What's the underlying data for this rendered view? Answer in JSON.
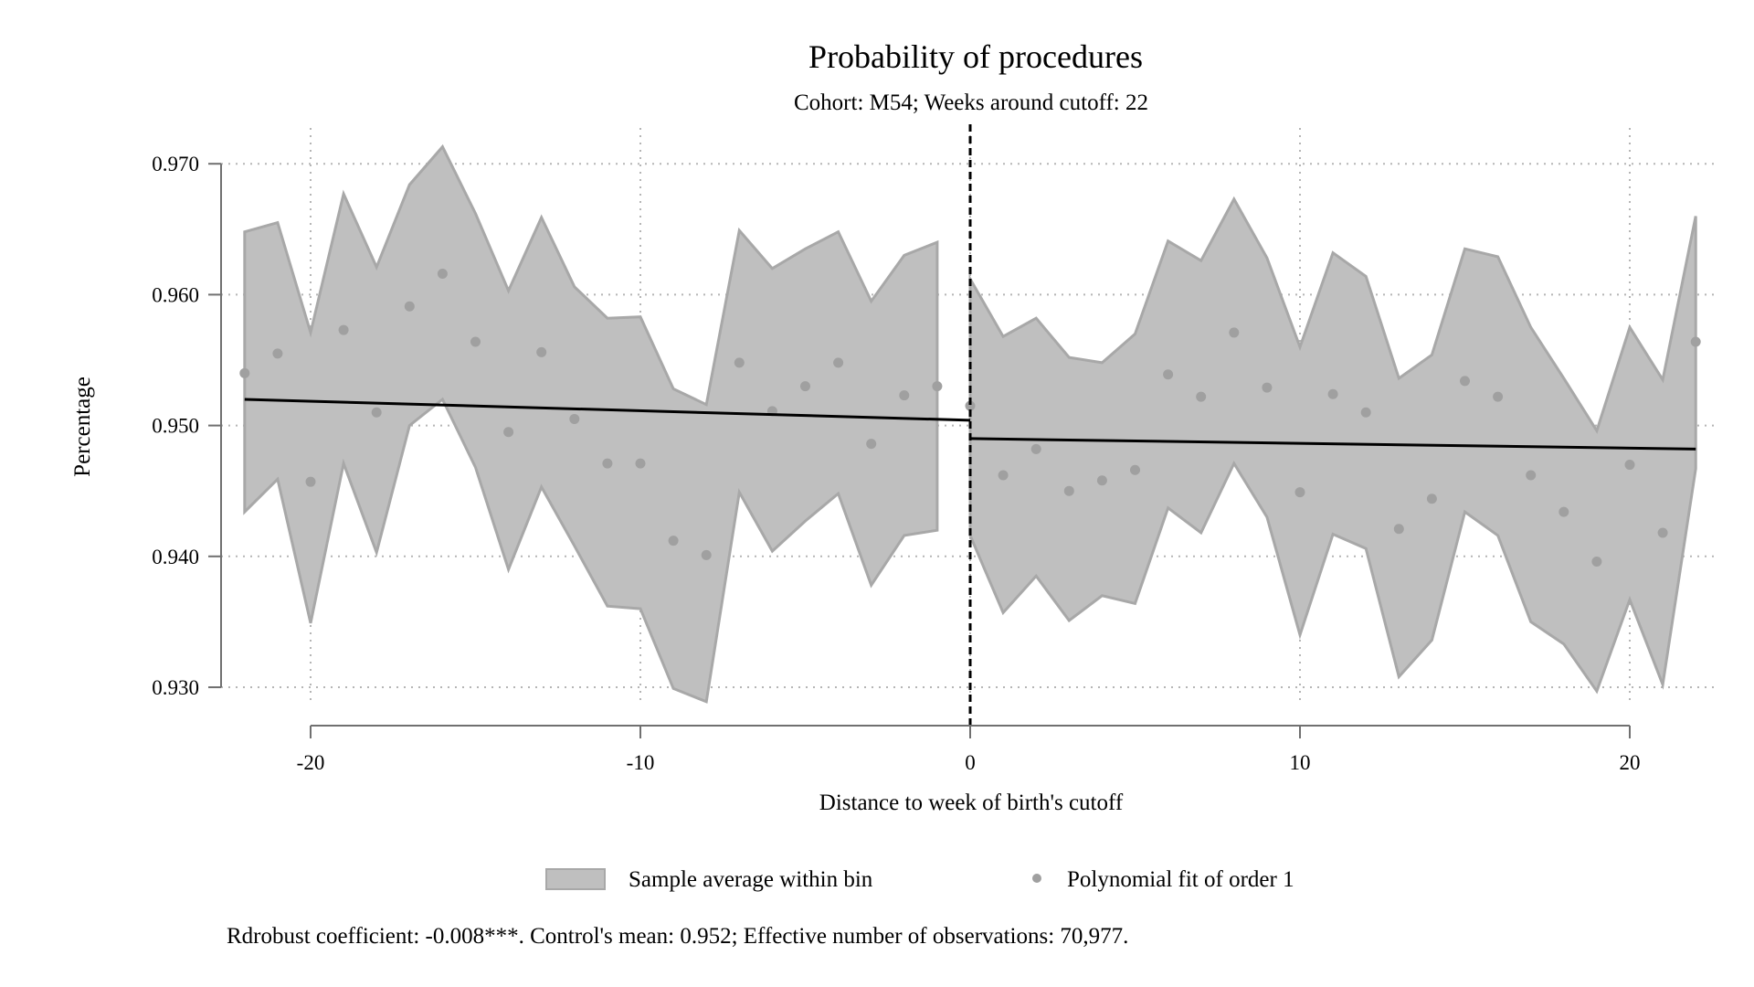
{
  "chart_data": {
    "type": "scatter",
    "title": "Probability of procedures",
    "subtitle": "Cohort: M54; Weeks around cutoff: 22",
    "xlabel": "Distance to week of birth's cutoff",
    "ylabel": "Percentage",
    "xlim": [
      -23,
      23
    ],
    "ylim": [
      0.927,
      0.972
    ],
    "x_ticks": [
      -20,
      -10,
      0,
      10,
      20
    ],
    "x_tick_labels": [
      "-20",
      "-10",
      "0",
      "10",
      "20"
    ],
    "y_ticks": [
      0.93,
      0.94,
      0.95,
      0.96,
      0.97
    ],
    "y_tick_labels": [
      "0.930",
      "0.940",
      "0.950",
      "0.960",
      "0.970"
    ],
    "grid": true,
    "cutoff": 0,
    "legend_position": "bottom",
    "legend": [
      {
        "label": "Sample average within bin",
        "kind": "area",
        "color": "#bfbfbf"
      },
      {
        "label": "Polynomial fit of order 1",
        "kind": "point",
        "color": "#a0a0a0"
      }
    ],
    "colors": {
      "band_fill": "#bfbfbf",
      "band_edge": "#a8a8a8",
      "points": "#a0a0a0",
      "fit_line": "#000000",
      "cutoff_line": "#000000",
      "grid": "#b5b5b5",
      "axis": "#707070"
    },
    "band_left": {
      "x": [
        -22,
        -21,
        -20,
        -19,
        -18,
        -17,
        -16,
        -15,
        -14,
        -13,
        -12,
        -11,
        -10,
        -9,
        -8,
        -7,
        -6,
        -5,
        -4,
        -3,
        -2,
        -1
      ],
      "upper": [
        0.9648,
        0.9655,
        0.9571,
        0.9677,
        0.9621,
        0.9684,
        0.9713,
        0.9662,
        0.9603,
        0.9659,
        0.9606,
        0.9582,
        0.9583,
        0.9528,
        0.9516,
        0.9649,
        0.962,
        0.9635,
        0.9648,
        0.9595,
        0.963,
        0.964
      ],
      "lower": [
        0.9434,
        0.9459,
        0.9349,
        0.9471,
        0.9403,
        0.95,
        0.952,
        0.9468,
        0.939,
        0.9453,
        0.9408,
        0.9362,
        0.936,
        0.9299,
        0.9289,
        0.9449,
        0.9404,
        0.9427,
        0.9448,
        0.9378,
        0.9416,
        0.942
      ]
    },
    "band_right": {
      "x": [
        0,
        1,
        2,
        3,
        4,
        5,
        6,
        7,
        8,
        9,
        10,
        11,
        12,
        13,
        14,
        15,
        16,
        17,
        18,
        19,
        20,
        21,
        22
      ],
      "upper": [
        0.9612,
        0.9568,
        0.9582,
        0.9552,
        0.9548,
        0.957,
        0.9641,
        0.9626,
        0.9673,
        0.9628,
        0.956,
        0.9632,
        0.9614,
        0.9536,
        0.9554,
        0.9635,
        0.9629,
        0.9575,
        0.9536,
        0.9496,
        0.9575,
        0.9535,
        0.966
      ],
      "lower": [
        0.9416,
        0.9357,
        0.9385,
        0.9351,
        0.937,
        0.9364,
        0.9437,
        0.9418,
        0.9471,
        0.943,
        0.934,
        0.9417,
        0.9406,
        0.9308,
        0.9336,
        0.9434,
        0.9416,
        0.935,
        0.9333,
        0.9297,
        0.9367,
        0.9302,
        0.9467
      ]
    },
    "points": {
      "x": [
        -22,
        -21,
        -20,
        -19,
        -18,
        -17,
        -16,
        -15,
        -14,
        -13,
        -12,
        -11,
        -10,
        -9,
        -8,
        -7,
        -6,
        -5,
        -4,
        -3,
        -2,
        -1,
        0,
        1,
        2,
        3,
        4,
        5,
        6,
        7,
        8,
        9,
        10,
        11,
        12,
        13,
        14,
        15,
        16,
        17,
        18,
        19,
        20,
        21,
        22
      ],
      "y": [
        0.954,
        0.9555,
        0.9457,
        0.9573,
        0.951,
        0.9591,
        0.9616,
        0.9564,
        0.9495,
        0.9556,
        0.9505,
        0.9471,
        0.9471,
        0.9412,
        0.9401,
        0.9548,
        0.9511,
        0.953,
        0.9548,
        0.9486,
        0.9523,
        0.953,
        0.9515,
        0.9462,
        0.9482,
        0.945,
        0.9458,
        0.9466,
        0.9539,
        0.9522,
        0.9571,
        0.9529,
        0.9449,
        0.9524,
        0.951,
        0.9421,
        0.9444,
        0.9534,
        0.9522,
        0.9462,
        0.9434,
        0.9396,
        0.947,
        0.9418,
        0.9564
      ]
    },
    "fit_left": {
      "x": [
        -22,
        0
      ],
      "y": [
        0.952,
        0.9504
      ]
    },
    "fit_right": {
      "x": [
        0,
        22
      ],
      "y": [
        0.949,
        0.9482
      ]
    },
    "footnote": "Rdrobust coefficient: -0.008***. Control's mean: 0.952; Effective number of observations: 70,977."
  }
}
